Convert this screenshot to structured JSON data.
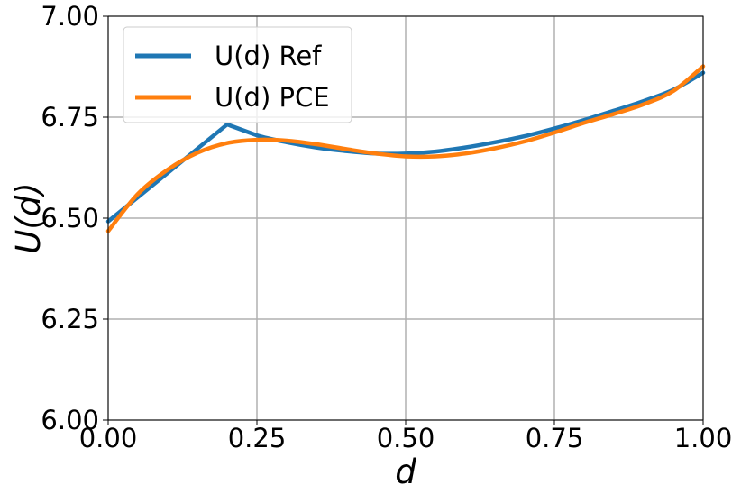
{
  "chart_data": {
    "type": "line",
    "xlabel": "d",
    "ylabel": "U(d)",
    "xlim": [
      0.0,
      1.0
    ],
    "ylim": [
      6.0,
      7.0
    ],
    "xticks": [
      "0.00",
      "0.25",
      "0.50",
      "0.75",
      "1.00"
    ],
    "yticks": [
      "6.00",
      "6.25",
      "6.50",
      "6.75",
      "7.00"
    ],
    "grid": true,
    "legend_position": "top-left",
    "series": [
      {
        "name": "U(d) Ref",
        "color": "#1f77b4",
        "x": [
          0.0,
          0.05,
          0.1,
          0.15,
          0.2,
          0.25,
          0.3,
          0.35,
          0.4,
          0.45,
          0.5,
          0.55,
          0.6,
          0.65,
          0.7,
          0.75,
          0.8,
          0.85,
          0.9,
          0.95,
          1.0
        ],
        "y": [
          6.492,
          6.552,
          6.612,
          6.672,
          6.732,
          6.705,
          6.688,
          6.675,
          6.666,
          6.66,
          6.66,
          6.665,
          6.675,
          6.688,
          6.703,
          6.722,
          6.743,
          6.766,
          6.79,
          6.818,
          6.86
        ]
      },
      {
        "name": "U(d) PCE",
        "color": "#ff7f0e",
        "x": [
          0.0,
          0.05,
          0.1,
          0.15,
          0.2,
          0.25,
          0.3,
          0.35,
          0.4,
          0.45,
          0.5,
          0.55,
          0.6,
          0.65,
          0.7,
          0.75,
          0.8,
          0.85,
          0.9,
          0.95,
          1.0
        ],
        "y": [
          6.468,
          6.56,
          6.62,
          6.662,
          6.686,
          6.694,
          6.692,
          6.683,
          6.671,
          6.66,
          6.653,
          6.653,
          6.66,
          6.673,
          6.69,
          6.712,
          6.736,
          6.758,
          6.782,
          6.815,
          6.876
        ]
      }
    ]
  }
}
